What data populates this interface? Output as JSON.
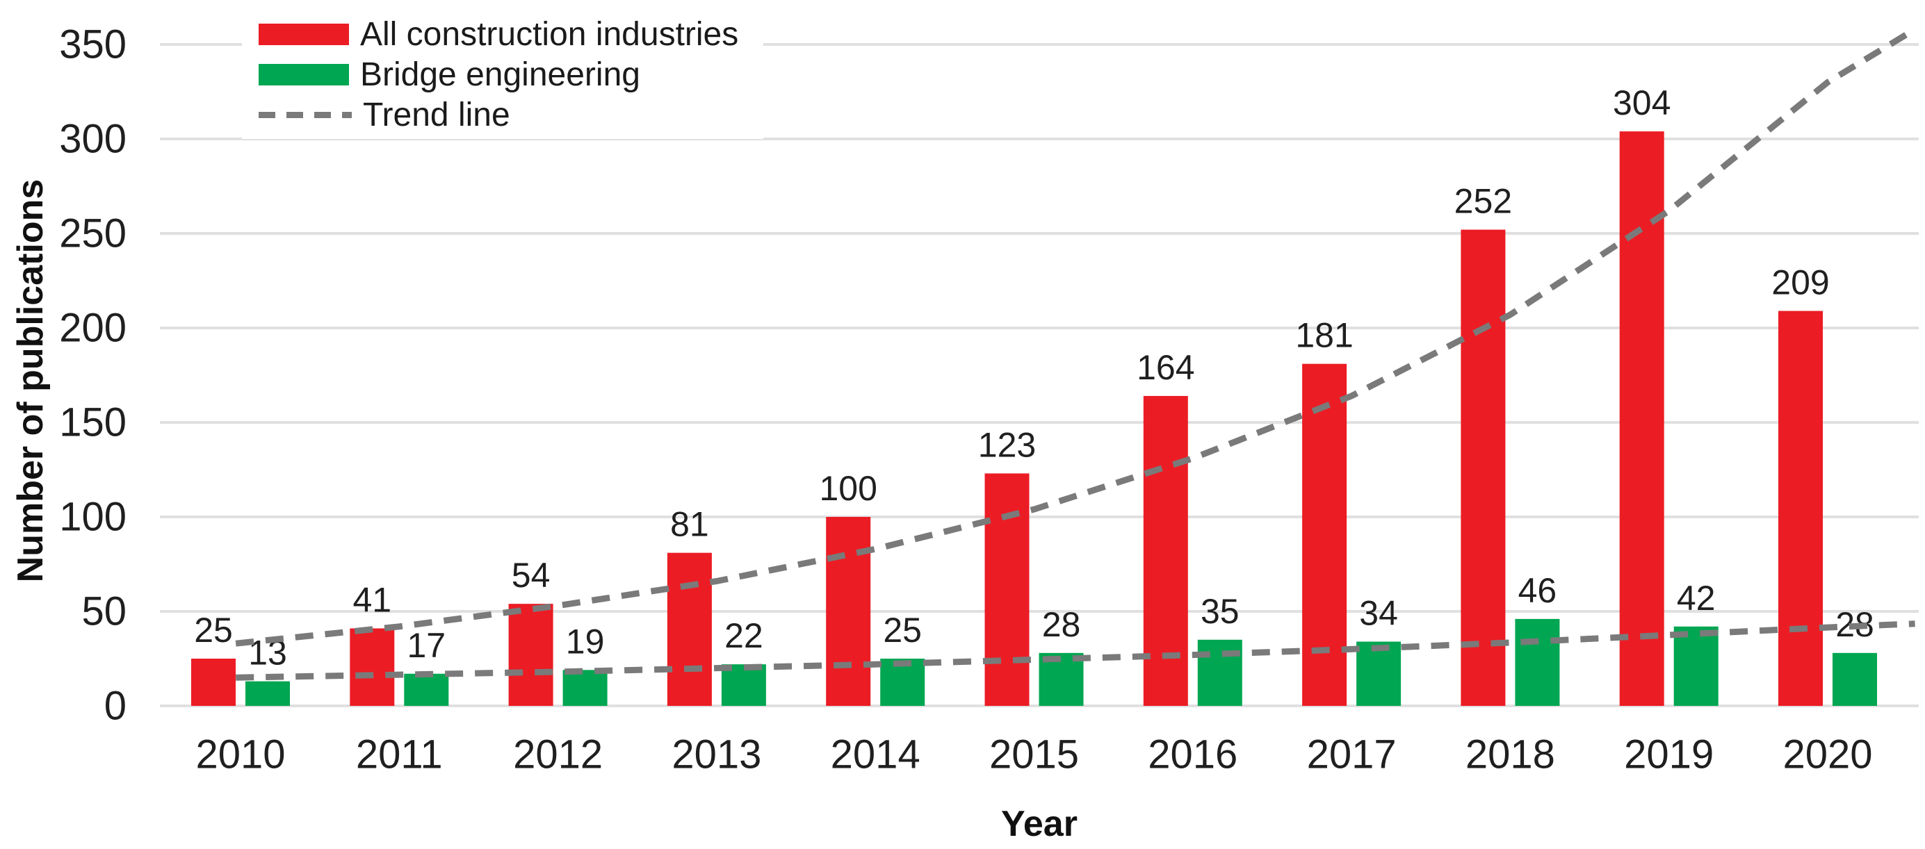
{
  "chart_data": {
    "type": "bar",
    "title": "",
    "xlabel": "Year",
    "ylabel": "Number of publications",
    "categories": [
      "2010",
      "2011",
      "2012",
      "2013",
      "2014",
      "2015",
      "2016",
      "2017",
      "2018",
      "2019",
      "2020"
    ],
    "series": [
      {
        "name": "All construction industries",
        "color": "#EC1C24",
        "values": [
          25,
          41,
          54,
          81,
          100,
          123,
          164,
          181,
          252,
          304,
          209
        ]
      },
      {
        "name": "Bridge engineering",
        "color": "#00A651",
        "values": [
          13,
          17,
          19,
          22,
          25,
          28,
          35,
          34,
          46,
          42,
          28
        ]
      }
    ],
    "trend": {
      "name": "Trend line",
      "color": "#7A7A7A",
      "lines": [
        {
          "series": "All construction industries",
          "points": [
            {
              "i": -0.03,
              "v": 33
            },
            {
              "i": 1,
              "v": 42
            },
            {
              "i": 2,
              "v": 53
            },
            {
              "i": 3,
              "v": 66
            },
            {
              "i": 4,
              "v": 83
            },
            {
              "i": 5,
              "v": 104
            },
            {
              "i": 6,
              "v": 131
            },
            {
              "i": 7,
              "v": 164
            },
            {
              "i": 8,
              "v": 207
            },
            {
              "i": 9,
              "v": 262
            },
            {
              "i": 10,
              "v": 330
            },
            {
              "i": 10.55,
              "v": 358
            }
          ]
        },
        {
          "series": "Bridge engineering",
          "points": [
            {
              "i": -0.03,
              "v": 15
            },
            {
              "i": 1,
              "v": 16.5
            },
            {
              "i": 2,
              "v": 18
            },
            {
              "i": 3,
              "v": 20
            },
            {
              "i": 4,
              "v": 22
            },
            {
              "i": 5,
              "v": 24.5
            },
            {
              "i": 6,
              "v": 27
            },
            {
              "i": 7,
              "v": 30
            },
            {
              "i": 8,
              "v": 33.5
            },
            {
              "i": 9,
              "v": 37.5
            },
            {
              "i": 10,
              "v": 41.5
            },
            {
              "i": 10.55,
              "v": 43.5
            }
          ]
        }
      ]
    },
    "y_ticks": [
      0,
      50,
      100,
      150,
      200,
      250,
      300,
      350
    ],
    "ylim": [
      0,
      350
    ],
    "grid": true,
    "legend_position": "top-left",
    "colors": {
      "grid": "#E0E0E0",
      "trend": "#7A7A7A",
      "text": "#1f1f1f"
    }
  }
}
